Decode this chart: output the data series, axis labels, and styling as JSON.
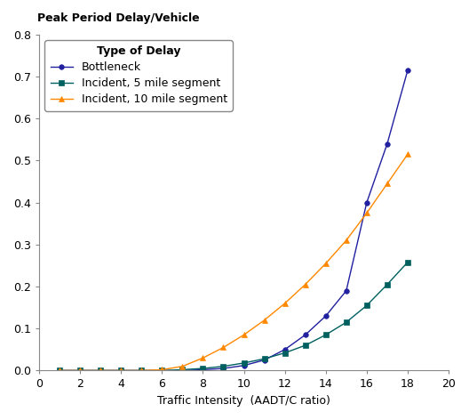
{
  "title": "Peak Period Delay/Vehicle",
  "xlabel": "Traffic Intensity  (AADT/C ratio)",
  "ylabel": "",
  "xlim": [
    0,
    20
  ],
  "ylim": [
    0,
    0.8
  ],
  "xticks": [
    0,
    2,
    4,
    6,
    8,
    10,
    12,
    14,
    16,
    18,
    20
  ],
  "yticks": [
    0.0,
    0.1,
    0.2,
    0.3,
    0.4,
    0.5,
    0.6,
    0.7,
    0.8
  ],
  "legend_title": "Type of Delay",
  "series": [
    {
      "label": "Bottleneck",
      "color": "#2020a0",
      "marker": "o",
      "markersize": 4,
      "x": [
        1,
        2,
        3,
        4,
        5,
        6,
        7,
        8,
        9,
        10,
        11,
        12,
        13,
        14,
        15,
        16,
        17,
        18
      ],
      "y": [
        0.0,
        0.0,
        0.0,
        0.0,
        0.0,
        0.0,
        0.0,
        0.002,
        0.005,
        0.012,
        0.025,
        0.05,
        0.085,
        0.13,
        0.19,
        0.4,
        0.54,
        0.715
      ]
    },
    {
      "label": "Incident, 5 mile segment",
      "color": "#006060",
      "marker": "s",
      "markersize": 4,
      "x": [
        1,
        2,
        3,
        4,
        5,
        6,
        7,
        8,
        9,
        10,
        11,
        12,
        13,
        14,
        15,
        16,
        17,
        18
      ],
      "y": [
        0.0,
        0.0,
        0.0,
        0.0,
        0.0,
        0.0,
        0.002,
        0.005,
        0.01,
        0.018,
        0.028,
        0.042,
        0.06,
        0.085,
        0.115,
        0.155,
        0.205,
        0.258
      ]
    },
    {
      "label": "Incident, 10 mile segment",
      "color": "#ff8800",
      "marker": "^",
      "markersize": 5,
      "x": [
        1,
        2,
        3,
        4,
        5,
        6,
        7,
        8,
        9,
        10,
        11,
        12,
        13,
        14,
        15,
        16,
        17,
        18
      ],
      "y": [
        0.0,
        0.0,
        0.0,
        0.0,
        0.0,
        0.002,
        0.01,
        0.03,
        0.055,
        0.085,
        0.12,
        0.16,
        0.205,
        0.255,
        0.31,
        0.375,
        0.445,
        0.515
      ]
    }
  ],
  "background_color": "#ffffff",
  "title_fontsize": 9,
  "axis_label_fontsize": 9,
  "tick_fontsize": 9,
  "legend_fontsize": 9,
  "legend_title_fontsize": 9
}
